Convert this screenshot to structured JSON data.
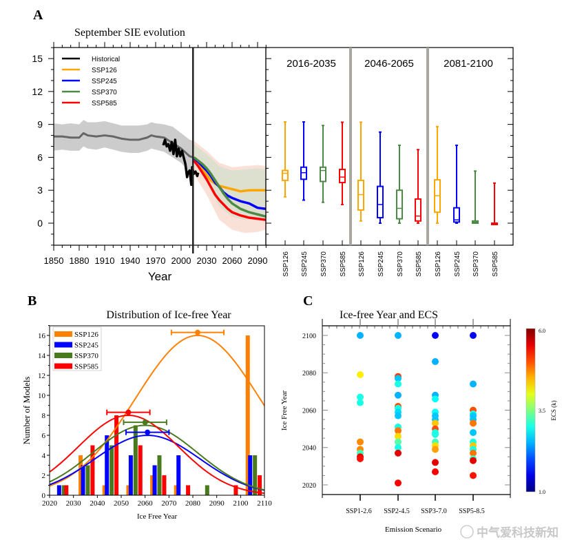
{
  "chart_data": [
    {
      "panel": "A",
      "type": "line",
      "title": "September SIE evolution",
      "xlabel": "Year",
      "ylabel": "",
      "xlim": [
        1850,
        2100
      ],
      "ylim": [
        -2,
        16
      ],
      "xticks": [
        1850,
        1880,
        1910,
        1940,
        1970,
        2000,
        2030,
        2060,
        2090
      ],
      "yticks": [
        0,
        3,
        6,
        9,
        12,
        15
      ],
      "divider_year": 2014,
      "legend_position": "top-left",
      "colors": {
        "Historical": "#000000",
        "SSP126": "#ffa500",
        "SSP245": "#0000ff",
        "SSP370": "#4a8a45",
        "SSP585": "#ff0000",
        "ensemble": "#666666"
      },
      "series": [
        {
          "name": "Historical",
          "x": [
            1979,
            1981,
            1983,
            1985,
            1987,
            1989,
            1991,
            1993,
            1995,
            1997,
            1999,
            2001,
            2003,
            2005,
            2007,
            2008,
            2010,
            2012,
            2013,
            2015,
            2017,
            2019,
            2020
          ],
          "y": [
            7.1,
            7.6,
            7.0,
            7.2,
            6.6,
            7.4,
            6.3,
            7.6,
            6.1,
            6.8,
            6.1,
            6.6,
            6.0,
            5.4,
            4.2,
            4.6,
            4.8,
            3.5,
            5.1,
            4.5,
            4.7,
            4.3,
            4.6
          ]
        },
        {
          "name": "SSP126",
          "x": [
            2015,
            2020,
            2025,
            2030,
            2035,
            2040,
            2045,
            2050,
            2055,
            2060,
            2070,
            2080,
            2090,
            2100
          ],
          "y": [
            5.8,
            5.4,
            4.9,
            4.4,
            3.9,
            3.6,
            3.4,
            3.3,
            3.2,
            3.1,
            2.9,
            3.0,
            3.0,
            3.0
          ]
        },
        {
          "name": "SSP245",
          "x": [
            2015,
            2020,
            2025,
            2030,
            2035,
            2040,
            2045,
            2050,
            2055,
            2060,
            2070,
            2080,
            2090,
            2100
          ],
          "y": [
            5.9,
            5.6,
            5.2,
            4.8,
            4.3,
            3.7,
            3.3,
            2.8,
            2.5,
            2.3,
            2.0,
            1.8,
            1.4,
            1.3
          ]
        },
        {
          "name": "SSP370",
          "x": [
            2015,
            2020,
            2025,
            2030,
            2035,
            2040,
            2045,
            2050,
            2055,
            2060,
            2070,
            2080,
            2090,
            2100
          ],
          "y": [
            6.0,
            5.7,
            5.4,
            5.0,
            4.5,
            3.9,
            3.3,
            2.7,
            2.2,
            1.8,
            1.3,
            1.0,
            0.8,
            0.6
          ]
        },
        {
          "name": "SSP585",
          "x": [
            2015,
            2020,
            2025,
            2030,
            2035,
            2040,
            2045,
            2050,
            2055,
            2060,
            2070,
            2080,
            2090,
            2100
          ],
          "y": [
            5.7,
            5.2,
            4.6,
            4.0,
            3.3,
            2.6,
            2.1,
            1.7,
            1.3,
            1.0,
            0.7,
            0.5,
            0.4,
            0.3
          ]
        }
      ],
      "ensemble_mean": {
        "x": [
          1850,
          1860,
          1870,
          1880,
          1885,
          1890,
          1900,
          1910,
          1920,
          1930,
          1940,
          1950,
          1960,
          1965,
          1970,
          1980,
          1990,
          2000,
          2010,
          2014
        ],
        "y": [
          7.9,
          7.9,
          7.8,
          7.8,
          8.2,
          8.0,
          7.9,
          8.0,
          7.9,
          7.7,
          7.6,
          7.6,
          7.8,
          8.0,
          7.9,
          7.8,
          7.3,
          6.8,
          6.1,
          6.0
        ]
      },
      "ensemble_spread": {
        "x": [
          1850,
          1860,
          1870,
          1880,
          1885,
          1890,
          1900,
          1910,
          1920,
          1930,
          1940,
          1950,
          1960,
          1965,
          1970,
          1980,
          1990,
          2000,
          2010,
          2014
        ],
        "upper": [
          9.1,
          9.0,
          9.1,
          9.0,
          9.4,
          9.2,
          9.2,
          9.3,
          9.1,
          8.9,
          8.9,
          8.9,
          9.0,
          9.2,
          9.1,
          9.0,
          8.8,
          8.2,
          7.6,
          7.5
        ],
        "lower": [
          6.6,
          6.7,
          6.6,
          6.6,
          7.0,
          6.8,
          6.7,
          6.9,
          6.7,
          6.5,
          6.4,
          6.4,
          6.6,
          6.8,
          6.7,
          6.5,
          6.0,
          5.5,
          4.6,
          4.4
        ]
      },
      "future_spread": {
        "x": [
          2015,
          2030,
          2045,
          2060,
          2075,
          2090,
          2100
        ],
        "upper": [
          7.5,
          6.6,
          5.5,
          5.1,
          5.2,
          5.3,
          5.2
        ],
        "lower": [
          4.5,
          2.6,
          0.3,
          -0.6,
          -0.9,
          -0.8,
          -0.6
        ]
      },
      "legend": [
        "Historical",
        "SSP126",
        "SSP245",
        "SSP370",
        "SSP585"
      ]
    },
    {
      "panel": "A-boxplots",
      "type": "box",
      "periods": [
        "2016-2035",
        "2046-2065",
        "2081-2100"
      ],
      "categories": [
        "SSP126",
        "SSP245",
        "SSP370",
        "SSP585"
      ],
      "ylim": [
        -2,
        16
      ],
      "boxes": [
        [
          [
            2.4,
            3.9,
            4.54,
            4.8,
            9.23
          ],
          [
            2.1,
            4.0,
            4.6,
            5.1,
            9.23
          ],
          [
            1.9,
            3.8,
            4.8,
            5.1,
            8.9
          ],
          [
            1.7,
            3.7,
            4.2,
            4.9,
            9.2
          ]
        ],
        [
          [
            0.2,
            1.2,
            2.6,
            3.9,
            9.2
          ],
          [
            0.0,
            0.5,
            1.7,
            3.35,
            8.3
          ],
          [
            0.0,
            0.4,
            1.35,
            3.0,
            7.1
          ],
          [
            0.0,
            0.2,
            0.65,
            2.2,
            6.7
          ]
        ],
        [
          [
            0.0,
            1.0,
            2.5,
            3.95,
            8.8
          ],
          [
            0.0,
            0.1,
            0.3,
            1.4,
            7.1
          ],
          [
            0.0,
            0.0,
            0.1,
            0.2,
            4.75
          ],
          [
            0.0,
            0.0,
            0.0,
            0.0,
            3.65
          ]
        ]
      ]
    },
    {
      "panel": "B",
      "type": "bar",
      "title": "Distribution of Ice-free Year",
      "xlabel": "Ice Free Year",
      "ylabel": "Number of Models",
      "xlim": [
        2020,
        2110
      ],
      "ylim": [
        0,
        17
      ],
      "xticks": [
        2020,
        2030,
        2040,
        2050,
        2060,
        2070,
        2080,
        2090,
        2100,
        2110
      ],
      "yticks": [
        0,
        2,
        4,
        6,
        8,
        10,
        12,
        14,
        16
      ],
      "legend_position": "top-left",
      "series": [
        {
          "name": "SSP126",
          "color": "#ff8000",
          "x": [
            2033,
            2043,
            2053,
            2063,
            2073,
            2103
          ],
          "values": [
            4,
            1,
            1,
            2,
            1,
            16
          ],
          "fit_mean": 2082,
          "fit_peak": 16,
          "fit_sigma": 26,
          "mean_marker": 16.3,
          "err": 11
        },
        {
          "name": "SSP245",
          "color": "#0000ff",
          "x": [
            2024,
            2034,
            2044,
            2054,
            2064,
            2074,
            2104
          ],
          "values": [
            1,
            3,
            6,
            4,
            3,
            4,
            4
          ],
          "fit_mean": 2061,
          "fit_peak": 6,
          "fit_sigma": 22,
          "mean_marker": 6.3,
          "err": 9
        },
        {
          "name": "SSP370",
          "color": "#4a7a1e",
          "x": [
            2026,
            2036,
            2046,
            2056,
            2066,
            2086,
            2106
          ],
          "values": [
            1,
            3,
            5,
            7,
            4,
            1,
            4
          ],
          "fit_mean": 2060,
          "fit_peak": 7,
          "fit_sigma": 22,
          "mean_marker": 7.3,
          "err": 9
        },
        {
          "name": "SSP585",
          "color": "#ff0000",
          "x": [
            2027,
            2038,
            2048,
            2058,
            2068,
            2078,
            2098,
            2108
          ],
          "values": [
            1,
            5,
            8,
            5,
            2,
            1,
            1,
            2
          ],
          "fit_mean": 2053,
          "fit_peak": 8,
          "fit_sigma": 21,
          "mean_marker": 8.3,
          "err": 9
        }
      ]
    },
    {
      "panel": "C",
      "type": "scatter",
      "title": "Ice-free Year and ECS",
      "xlabel": "Emission Scenario",
      "ylabel": "Ice Free Year",
      "ylim": [
        2016,
        2104
      ],
      "yticks": [
        2020,
        2040,
        2060,
        2080,
        2100
      ],
      "categories": [
        "SSP1-2.6",
        "SSP2-4.5",
        "SSP3-7.0",
        "SSP5-8.5"
      ],
      "colorbar": {
        "label": "ECS (k)",
        "min": 1.0,
        "max": 6.0,
        "ticks": [
          "1.0",
          "3.5",
          "6.0"
        ]
      },
      "points": [
        [
          [
            2100,
            2.5
          ],
          [
            2079,
            4.2
          ],
          [
            2067,
            3.0
          ],
          [
            2064,
            3.0
          ],
          [
            2043,
            4.7
          ],
          [
            2039,
            4.7
          ],
          [
            2037,
            3.2
          ],
          [
            2035,
            5.5
          ],
          [
            2034,
            5.3
          ]
        ],
        [
          [
            2100,
            2.5
          ],
          [
            2078,
            5.1
          ],
          [
            2077,
            2.6
          ],
          [
            2074,
            3.0
          ],
          [
            2068,
            2.5
          ],
          [
            2062,
            5.0
          ],
          [
            2061,
            3.0
          ],
          [
            2059,
            2.7
          ],
          [
            2057,
            2.6
          ],
          [
            2051,
            3.0
          ],
          [
            2049,
            4.8
          ],
          [
            2046,
            4.3
          ],
          [
            2043,
            3.3
          ],
          [
            2040,
            3.0
          ],
          [
            2037,
            5.5
          ],
          [
            2021,
            5.4
          ]
        ],
        [
          [
            2100,
            1.6
          ],
          [
            2086,
            2.5
          ],
          [
            2068,
            2.5
          ],
          [
            2066,
            2.9
          ],
          [
            2059,
            2.9
          ],
          [
            2057,
            2.6
          ],
          [
            2055,
            2.6
          ],
          [
            2053,
            4.4
          ],
          [
            2050,
            5.0
          ],
          [
            2048,
            3.0
          ],
          [
            2047,
            3.0
          ],
          [
            2043,
            3.2
          ],
          [
            2041,
            4.3
          ],
          [
            2039,
            4.6
          ],
          [
            2032,
            5.5
          ],
          [
            2027,
            5.4
          ]
        ],
        [
          [
            2100,
            1.6
          ],
          [
            2074,
            2.5
          ],
          [
            2060,
            5.0
          ],
          [
            2058,
            3.0
          ],
          [
            2057,
            2.6
          ],
          [
            2055,
            2.6
          ],
          [
            2053,
            4.8
          ],
          [
            2048,
            2.6
          ],
          [
            2043,
            3.0
          ],
          [
            2041,
            4.4
          ],
          [
            2039,
            3.0
          ],
          [
            2037,
            4.8
          ],
          [
            2034,
            3.2
          ],
          [
            2033,
            5.5
          ],
          [
            2025,
            5.3
          ]
        ]
      ]
    }
  ],
  "panel_letters": [
    "A",
    "B",
    "C"
  ],
  "watermark": "中气爱科技新知"
}
